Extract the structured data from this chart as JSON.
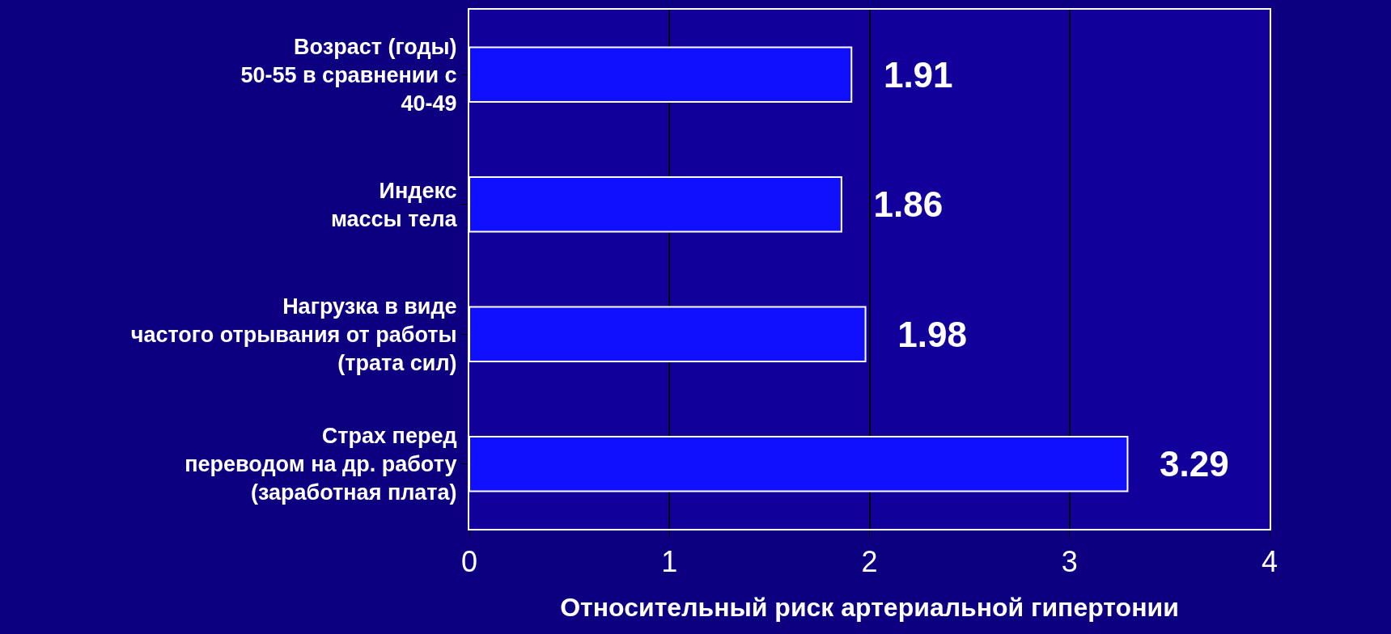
{
  "chart_data": {
    "type": "bar",
    "orientation": "horizontal",
    "categories": [
      "Возраст (годы)\n50-55 в сравнении с\n40-49",
      "Индекс\nмассы тела",
      "Нагрузка в виде\nчастого отрывания от работы\n(трата сил)",
      "Страх перед\nпереводом на др. работу\n(заработная плата)"
    ],
    "values": [
      1.91,
      1.86,
      1.98,
      3.29
    ],
    "color": "#1010ff",
    "data_labels": true,
    "xlabel": "Относительный риск артериальной гипертонии",
    "xlim": [
      0,
      4
    ],
    "xticks": [
      0,
      1,
      2,
      3,
      4
    ],
    "grid": "x",
    "legend": false
  }
}
